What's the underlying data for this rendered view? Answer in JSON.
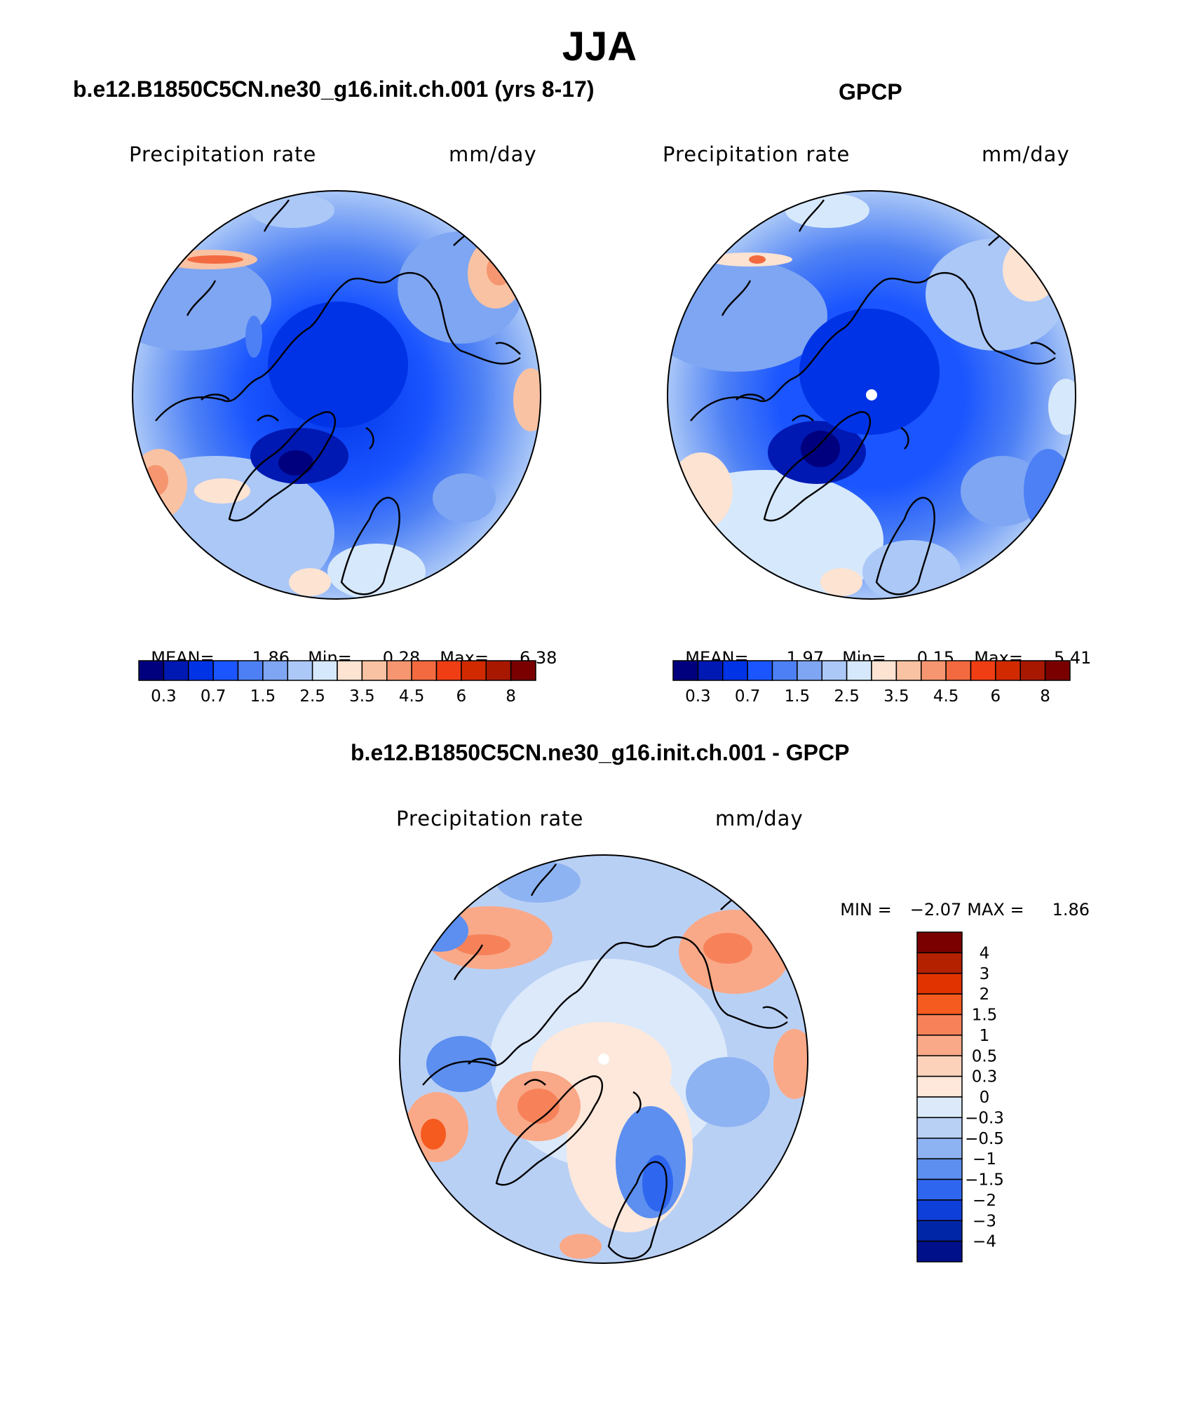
{
  "figure": {
    "title": "JJA"
  },
  "panels": [
    {
      "id": "model",
      "title": "b.e12.B1850C5CN.ne30_g16.init.ch.001 (yrs 8-17)",
      "variable": "Precipitation rate",
      "units": "mm/day",
      "stats": {
        "mean_label": "MEAN=",
        "mean": "1.86",
        "min_label": "Min=",
        "min": "0.28",
        "max_label": "Max=",
        "max": "6.38"
      }
    },
    {
      "id": "obs",
      "title": "GPCP",
      "variable": "Precipitation rate",
      "units": "mm/day",
      "stats": {
        "mean_label": "MEAN=",
        "mean": "1.97",
        "min_label": "Min=",
        "min": "0.15",
        "max_label": "Max=",
        "max": "5.41"
      }
    },
    {
      "id": "diff",
      "title": "b.e12.B1850C5CN.ne30_g16.init.ch.001 - GPCP",
      "variable": "Precipitation rate",
      "units": "mm/day",
      "stats": {
        "min_label": "MIN =",
        "min": "−2.07",
        "max_label": "MAX =",
        "max": "1.86"
      }
    }
  ],
  "colorbars": {
    "absolute": {
      "colors": [
        "#00007f",
        "#0019b2",
        "#0033e6",
        "#1a55ff",
        "#4d80f5",
        "#7fa6f2",
        "#abc8f7",
        "#d6e8fb",
        "#fce3d2",
        "#f9c2a3",
        "#f59670",
        "#f36a40",
        "#f03e14",
        "#d12a00",
        "#a81800",
        "#7a0000"
      ],
      "tick_labels": [
        "0.3",
        "0.7",
        "1.5",
        "2.5",
        "3.5",
        "4.5",
        "6",
        "8"
      ]
    },
    "difference": {
      "colors": [
        "#7a0000",
        "#b32100",
        "#e03300",
        "#f55a1f",
        "#f7825a",
        "#f9a988",
        "#fcd2bb",
        "#fde8db",
        "#dbe9fa",
        "#b9d0f5",
        "#8eb3f2",
        "#5c8ff0",
        "#2f66f0",
        "#0f3fd9",
        "#0026a8",
        "#00108a"
      ],
      "tick_labels": [
        "4",
        "3",
        "2",
        "1.5",
        "1",
        "0.5",
        "0.3",
        "0",
        "−0.3",
        "−0.5",
        "−1",
        "−1.5",
        "−2",
        "−3",
        "−4"
      ]
    }
  }
}
